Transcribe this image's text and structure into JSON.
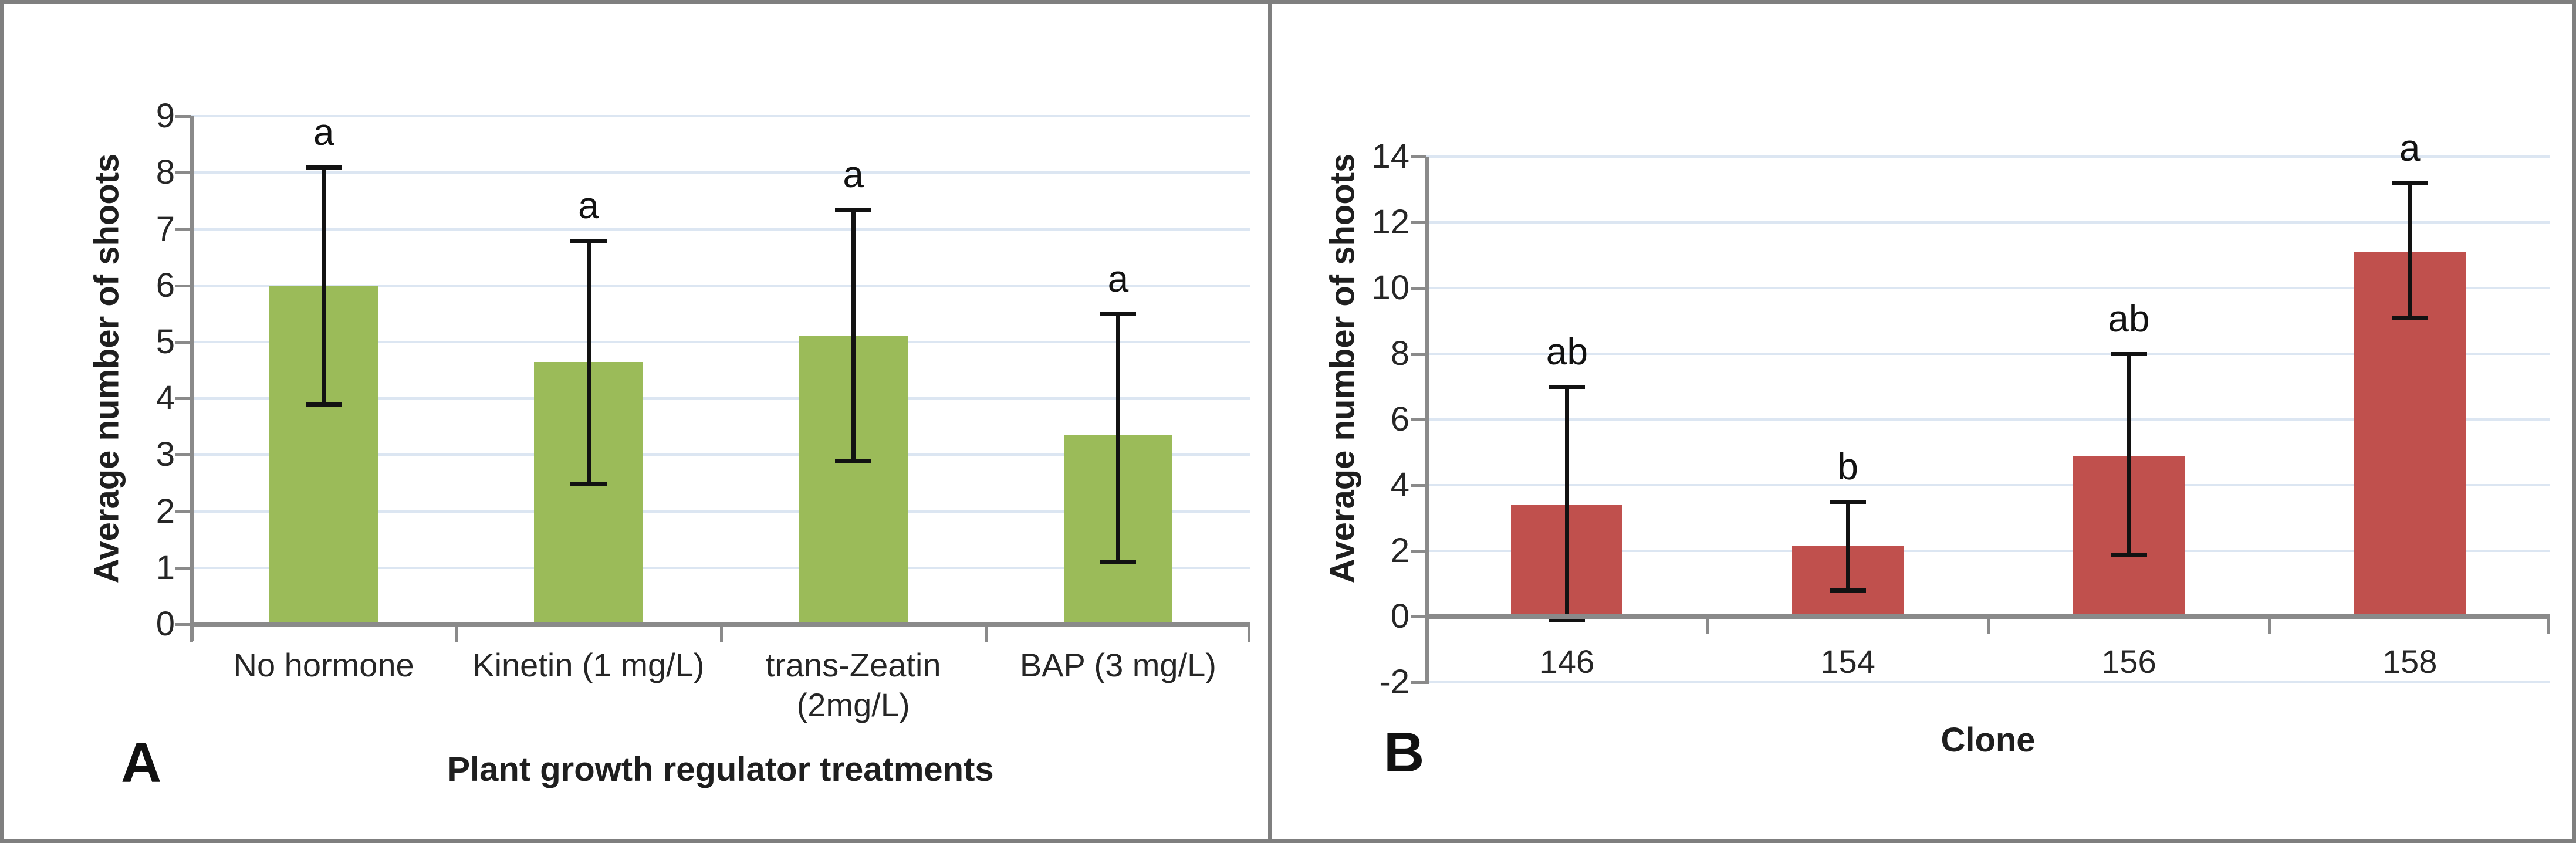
{
  "figure": {
    "background": "#ffffff",
    "border_color": "#7f7f7f",
    "divider_color": "#7f7f7f"
  },
  "chart_data": [
    {
      "id": "A",
      "panel_letter": "A",
      "type": "bar",
      "title": "",
      "ylabel": "Average number of shoots",
      "xlabel": "Plant growth regulator treatments",
      "ylim": [
        0,
        9
      ],
      "ytick_step": 1,
      "ytick_labels": [
        "0",
        "1",
        "2",
        "3",
        "4",
        "5",
        "6",
        "7",
        "8",
        "9"
      ],
      "grid": true,
      "legend_position": "none",
      "bar_color": "#9BBB59",
      "error_bar_color": "#121212",
      "gridline_color": "#dce6f2",
      "axis_color": "#8a8a8a",
      "categories": [
        [
          "No hormone"
        ],
        [
          "Kinetin (1 mg/L)"
        ],
        [
          "trans-Zeatin",
          "(2mg/L)"
        ],
        [
          "BAP (3 mg/L)"
        ]
      ],
      "values": [
        6.0,
        4.65,
        5.1,
        3.35
      ],
      "error_low": [
        3.9,
        2.5,
        2.9,
        1.1
      ],
      "error_high": [
        8.1,
        6.8,
        7.35,
        5.5
      ],
      "sig_letters": [
        "a",
        "a",
        "a",
        "a"
      ]
    },
    {
      "id": "B",
      "panel_letter": "B",
      "type": "bar",
      "title": "",
      "ylabel": "Average number of shoots",
      "xlabel": "Clone",
      "ylim": [
        -2,
        14
      ],
      "ytick_step": 2,
      "ytick_labels": [
        "-2",
        "0",
        "2",
        "4",
        "6",
        "8",
        "10",
        "12",
        "14"
      ],
      "grid": true,
      "legend_position": "none",
      "bar_color": "#C0504D",
      "error_bar_color": "#121212",
      "gridline_color": "#dce6f2",
      "axis_color": "#8a8a8a",
      "categories": [
        [
          "146"
        ],
        [
          "154"
        ],
        [
          "156"
        ],
        [
          "158"
        ]
      ],
      "values": [
        3.4,
        2.15,
        4.9,
        11.1
      ],
      "error_low": [
        -0.1,
        0.8,
        1.9,
        9.1
      ],
      "error_high": [
        7.0,
        3.5,
        8.0,
        13.2
      ],
      "sig_letters": [
        "ab",
        "b",
        "ab",
        "a"
      ]
    }
  ]
}
